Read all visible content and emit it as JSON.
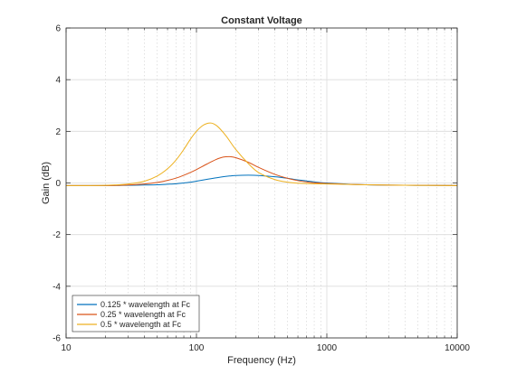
{
  "chart_data": {
    "type": "line",
    "title": "Constant Voltage",
    "xlabel": "Frequency (Hz)",
    "ylabel": "Gain (dB)",
    "xscale": "log",
    "xlim": [
      10,
      10000
    ],
    "ylim": [
      -6,
      6
    ],
    "xticks": [
      10,
      100,
      1000,
      10000
    ],
    "xtick_labels": [
      "10",
      "100",
      "1000",
      "10000"
    ],
    "yticks": [
      -6,
      -4,
      -2,
      0,
      2,
      4,
      6
    ],
    "ytick_labels": [
      "-6",
      "-4",
      "-2",
      "0",
      "2",
      "4",
      "6"
    ],
    "grid": true,
    "minor_grid": true,
    "legend_location": "bottom-left",
    "series": [
      {
        "name": "0.125 * wavelength at Fc",
        "color": "#0072BD",
        "x": [
          10,
          20,
          30,
          40,
          50,
          60,
          70,
          80,
          90,
          100,
          120,
          150,
          180,
          200,
          250,
          300,
          400,
          500,
          600,
          700,
          800,
          1000,
          2000,
          5000,
          10000
        ],
        "y": [
          -0.1,
          -0.1,
          -0.09,
          -0.08,
          -0.07,
          -0.05,
          -0.03,
          0.0,
          0.03,
          0.07,
          0.14,
          0.22,
          0.27,
          0.29,
          0.3,
          0.29,
          0.24,
          0.18,
          0.12,
          0.08,
          0.04,
          0.0,
          -0.07,
          -0.09,
          -0.1
        ]
      },
      {
        "name": "0.25 * wavelength at Fc",
        "color": "#D95319",
        "x": [
          10,
          20,
          30,
          40,
          50,
          60,
          70,
          80,
          90,
          100,
          120,
          140,
          160,
          180,
          200,
          250,
          300,
          400,
          500,
          600,
          700,
          800,
          1000,
          2000,
          5000,
          10000
        ],
        "y": [
          -0.1,
          -0.1,
          -0.08,
          -0.04,
          0.02,
          0.1,
          0.19,
          0.3,
          0.41,
          0.52,
          0.73,
          0.9,
          1.0,
          1.02,
          0.98,
          0.8,
          0.6,
          0.33,
          0.18,
          0.09,
          0.04,
          0.01,
          -0.02,
          -0.07,
          -0.09,
          -0.1
        ]
      },
      {
        "name": "0.5 * wavelength at Fc",
        "color": "#EDB120",
        "x": [
          10,
          20,
          30,
          40,
          50,
          60,
          70,
          80,
          90,
          100,
          110,
          120,
          130,
          140,
          150,
          170,
          200,
          250,
          300,
          400,
          500,
          600,
          800,
          1000,
          2000,
          5000,
          10000
        ],
        "y": [
          -0.1,
          -0.09,
          -0.04,
          0.07,
          0.27,
          0.55,
          0.9,
          1.3,
          1.7,
          2.0,
          2.2,
          2.3,
          2.32,
          2.25,
          2.12,
          1.8,
          1.3,
          0.75,
          0.4,
          0.13,
          0.03,
          -0.01,
          -0.03,
          -0.04,
          -0.07,
          -0.09,
          -0.1
        ]
      }
    ]
  }
}
